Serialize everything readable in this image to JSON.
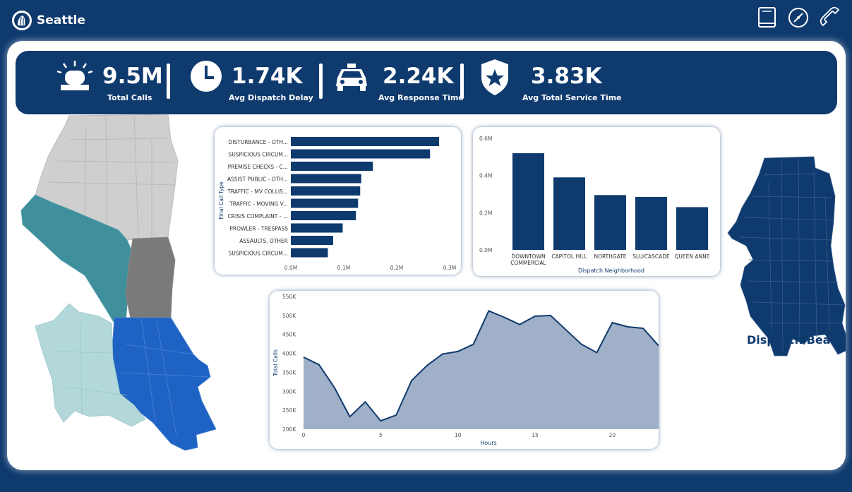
{
  "header": {
    "city": "Seattle",
    "icons": [
      "book-icon",
      "compass-icon",
      "phone-icon"
    ]
  },
  "kpis": [
    {
      "value": "9.5M",
      "label": "Total Calls",
      "icon": "siren-icon"
    },
    {
      "value": "1.74K",
      "label": "Avg Dispatch Delay",
      "icon": "clock-icon"
    },
    {
      "value": "2.24K",
      "label": "Avg Response Time",
      "icon": "police-car-icon"
    },
    {
      "value": "3.83K",
      "label": "Avg Total Service Time",
      "icon": "police-badge-icon"
    }
  ],
  "colors": {
    "navy": "#0f3a6e",
    "area_fill": "#9fb0c8",
    "map_gray": "#cfcfcf",
    "map_teal": "#3f8f9c",
    "map_dark_gray": "#7a7a7a",
    "map_blue": "#1e63c4",
    "map_light_teal": "#b3d8da"
  },
  "maps": {
    "right_title": "Dispatch Beats"
  },
  "chart_data": [
    {
      "type": "bar",
      "orientation": "horizontal",
      "categories": [
        "DISTURBANCE - OTH...",
        "SUSPICIOUS CIRCUM...",
        "PREMISE CHECKS - C...",
        "ASSIST PUBLIC - OTH...",
        "TRAFFIC - MV COLLIS...",
        "TRAFFIC - MOVING V...",
        "CRISIS COMPLAINT - ...",
        "PROWLER - TRESPASS",
        "ASSAULTS, OTHER",
        "SUSPICIOUS CIRCUM..."
      ],
      "values": [
        0.28,
        0.263,
        0.155,
        0.133,
        0.131,
        0.127,
        0.123,
        0.098,
        0.08,
        0.07
      ],
      "ylabel": "Final Call Type",
      "ticks": [
        "0.0M",
        "0.1M",
        "0.2M",
        "0.3M"
      ],
      "xlim": [
        0,
        0.3
      ]
    },
    {
      "type": "bar",
      "categories": [
        "DOWNTOWN COMMERCIAL",
        "CAPITOL HILL",
        "NORTHGATE",
        "SLU/CASCADE",
        "QUEEN ANNE"
      ],
      "category_lines": [
        [
          "DOWNTOWN",
          "COMMERCIAL"
        ],
        [
          "CAPITOL HILL"
        ],
        [
          "NORTHGATE"
        ],
        [
          "SLU/CASCADE"
        ],
        [
          "QUEEN ANNE"
        ]
      ],
      "values": [
        0.52,
        0.39,
        0.295,
        0.285,
        0.23
      ],
      "xlabel": "Dispatch Neighborhood",
      "ticks": [
        "0.6M",
        "0.4M",
        "0.2M",
        "0.0M"
      ],
      "ylim": [
        0,
        0.6
      ]
    },
    {
      "type": "area",
      "x": [
        0,
        1,
        2,
        3,
        4,
        5,
        6,
        7,
        8,
        9,
        10,
        11,
        12,
        13,
        14,
        15,
        16,
        17,
        18,
        19,
        20,
        21,
        22,
        23
      ],
      "values": [
        390,
        370,
        310,
        233,
        272,
        222,
        237,
        328,
        368,
        398,
        405,
        424,
        512,
        495,
        476,
        498,
        500,
        462,
        424,
        402,
        481,
        470,
        466,
        420
      ],
      "xlabel": "Hours",
      "ylabel": "Total Calls",
      "xticks": [
        "0",
        "5",
        "10",
        "15",
        "20"
      ],
      "yticks": [
        "550K",
        "500K",
        "450K",
        "400K",
        "350K",
        "300K",
        "250K",
        "200K"
      ],
      "ylim": [
        200,
        550
      ]
    }
  ]
}
